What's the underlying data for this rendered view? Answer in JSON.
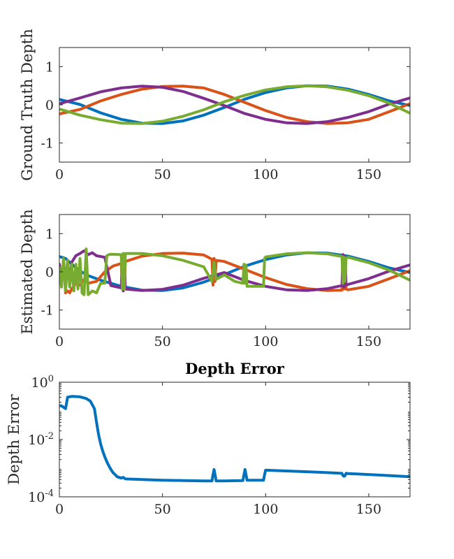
{
  "chart_data": [
    {
      "type": "line",
      "title": "",
      "xlabel": "",
      "ylabel": "Ground Truth Depth",
      "xlim": [
        0,
        170
      ],
      "ylim": [
        -1.5,
        1.5
      ],
      "xticks": [
        0,
        50,
        100,
        150
      ],
      "xtick_labels": [
        "0",
        "50",
        "100",
        "150"
      ],
      "yticks": [
        -1,
        0,
        1
      ],
      "ytick_labels": [
        "-1",
        "0",
        "1"
      ],
      "series": [
        {
          "name": "blue",
          "color": "#0072BD",
          "x": [
            0,
            10,
            20,
            30,
            40,
            50,
            60,
            70,
            80,
            90,
            100,
            110,
            120,
            130,
            140,
            150,
            160,
            170
          ],
          "values": [
            0.14,
            0.01,
            -0.21,
            -0.38,
            -0.48,
            -0.49,
            -0.42,
            -0.27,
            -0.07,
            0.15,
            0.32,
            0.44,
            0.5,
            0.49,
            0.41,
            0.27,
            0.1,
            -0.02
          ]
        },
        {
          "name": "orange",
          "color": "#D95319",
          "x": [
            0,
            10,
            20,
            30,
            40,
            50,
            60,
            70,
            80,
            90,
            100,
            110,
            120,
            130,
            140,
            150,
            160,
            170
          ],
          "values": [
            -0.24,
            -0.12,
            0.1,
            0.27,
            0.41,
            0.48,
            0.49,
            0.44,
            0.27,
            0.06,
            -0.15,
            -0.33,
            -0.44,
            -0.49,
            -0.47,
            -0.38,
            -0.18,
            0.03
          ]
        },
        {
          "name": "purple",
          "color": "#7E2F8E",
          "x": [
            0,
            10,
            20,
            30,
            40,
            50,
            60,
            70,
            80,
            90,
            100,
            110,
            120,
            130,
            140,
            150,
            160,
            170
          ],
          "values": [
            0.03,
            0.18,
            0.34,
            0.44,
            0.49,
            0.46,
            0.35,
            0.17,
            -0.02,
            -0.23,
            -0.38,
            -0.47,
            -0.49,
            -0.44,
            -0.33,
            -0.18,
            0.02,
            0.18
          ]
        },
        {
          "name": "green",
          "color": "#77AC30",
          "x": [
            0,
            10,
            20,
            30,
            40,
            50,
            60,
            70,
            80,
            90,
            100,
            110,
            120,
            130,
            140,
            150,
            160,
            170
          ],
          "values": [
            -0.11,
            -0.27,
            -0.39,
            -0.48,
            -0.49,
            -0.43,
            -0.3,
            -0.13,
            0.08,
            0.25,
            0.39,
            0.47,
            0.5,
            0.47,
            0.38,
            0.24,
            0.04,
            -0.22
          ]
        }
      ]
    },
    {
      "type": "line",
      "title": "",
      "xlabel": "",
      "ylabel": "Estimated Depth",
      "xlim": [
        0,
        170
      ],
      "ylim": [
        -1.5,
        1.5
      ],
      "xticks": [
        0,
        50,
        100,
        150
      ],
      "xtick_labels": [
        "0",
        "50",
        "100",
        "150"
      ],
      "yticks": [
        -1,
        0,
        1
      ],
      "ytick_labels": [
        "-1",
        "0",
        "1"
      ],
      "series": [
        {
          "name": "blue",
          "color": "#0072BD",
          "x": [
            0,
            3,
            6,
            10,
            14,
            20,
            25,
            30,
            40,
            50,
            60,
            70,
            80,
            90,
            100,
            110,
            120,
            130,
            140,
            150,
            160,
            170
          ],
          "values": [
            0.4,
            0.35,
            0.2,
            0.02,
            -0.1,
            -0.22,
            -0.3,
            -0.38,
            -0.48,
            -0.49,
            -0.42,
            -0.27,
            -0.07,
            0.15,
            0.32,
            0.44,
            0.5,
            0.49,
            0.41,
            0.27,
            0.1,
            -0.02
          ]
        },
        {
          "name": "orange",
          "color": "#D95319",
          "x": [
            0,
            1,
            2,
            3,
            4,
            5,
            6,
            8,
            10,
            12,
            14,
            18,
            22,
            26,
            30,
            30.5,
            31,
            31.5,
            32,
            40,
            50,
            60,
            70,
            74,
            74.5,
            75,
            75.5,
            76,
            80,
            90,
            100,
            110,
            120,
            130,
            137,
            137.5,
            138,
            138.5,
            139,
            140,
            150,
            160,
            170
          ],
          "values": [
            -0.1,
            -0.3,
            0.3,
            -0.55,
            -0.5,
            -0.55,
            -0.45,
            -0.3,
            -0.35,
            -0.2,
            -0.3,
            -0.25,
            0.0,
            0.15,
            0.22,
            -0.45,
            0.3,
            -0.45,
            0.27,
            0.41,
            0.48,
            0.49,
            0.44,
            0.33,
            -0.35,
            0.35,
            -0.25,
            0.3,
            0.27,
            0.06,
            -0.15,
            -0.33,
            -0.44,
            -0.49,
            -0.48,
            0.45,
            -0.45,
            0.4,
            -0.45,
            -0.47,
            -0.38,
            -0.18,
            0.03
          ]
        },
        {
          "name": "purple",
          "color": "#7E2F8E",
          "x": [
            0,
            1,
            2,
            3,
            4,
            5,
            6,
            8,
            10,
            12,
            14,
            16,
            18,
            22,
            25,
            30,
            30.5,
            31,
            31.5,
            32,
            40,
            50,
            60,
            70,
            80,
            90,
            100,
            110,
            120,
            130,
            137,
            137.5,
            138,
            138.5,
            139,
            140,
            150,
            160,
            170
          ],
          "values": [
            0.2,
            -0.3,
            0.25,
            -0.3,
            0.3,
            -0.3,
            0.25,
            0.42,
            0.48,
            0.55,
            0.45,
            0.5,
            0.42,
            0.38,
            -0.36,
            -0.42,
            0.45,
            -0.5,
            0.45,
            -0.45,
            -0.49,
            -0.46,
            -0.35,
            -0.17,
            -0.02,
            -0.23,
            -0.38,
            -0.47,
            -0.49,
            -0.44,
            -0.36,
            0.45,
            -0.4,
            0.4,
            -0.35,
            -0.33,
            -0.18,
            0.02,
            0.18
          ]
        },
        {
          "name": "green",
          "color": "#77AC30",
          "x": [
            0,
            1,
            2,
            3,
            4,
            5,
            6,
            7,
            8,
            9,
            10,
            11,
            12,
            13,
            14,
            16,
            18,
            20,
            22,
            23,
            24,
            25,
            30,
            30.5,
            31,
            31.5,
            32,
            40,
            50,
            60,
            70,
            74,
            75,
            76,
            80,
            85,
            89,
            89.5,
            90,
            90.5,
            91,
            99,
            99.5,
            100,
            110,
            120,
            130,
            137,
            137.5,
            138,
            138.5,
            139,
            140,
            150,
            160,
            170
          ],
          "values": [
            0.1,
            -0.4,
            0.35,
            -0.5,
            0.3,
            -0.4,
            0.2,
            -0.5,
            0.2,
            -0.45,
            0.35,
            -0.55,
            -0.6,
            0.6,
            -0.6,
            -0.5,
            -0.55,
            -0.3,
            -0.3,
            0.42,
            0.45,
            0.46,
            0.45,
            -0.45,
            0.48,
            -0.45,
            0.48,
            0.48,
            0.42,
            0.3,
            0.13,
            -0.25,
            0.25,
            -0.2,
            -0.08,
            -0.25,
            -0.3,
            0.2,
            -0.3,
            0.18,
            -0.38,
            -0.38,
            0.35,
            0.39,
            0.47,
            0.5,
            0.47,
            0.4,
            -0.3,
            0.38,
            -0.25,
            0.36,
            0.38,
            0.24,
            0.04,
            -0.22
          ]
        }
      ]
    },
    {
      "type": "line",
      "title": "Depth Error",
      "xlabel": "",
      "ylabel": "Depth Error",
      "yscale": "log",
      "xlim": [
        0,
        170
      ],
      "ylim": [
        0.0001,
        1
      ],
      "xticks": [
        0,
        50,
        100,
        150
      ],
      "xtick_labels": [
        "0",
        "50",
        "100",
        "150"
      ],
      "yticks": [
        0.0001,
        0.01,
        1
      ],
      "ytick_labels": [
        {
          "base": "10",
          "exp": "-4"
        },
        {
          "base": "10",
          "exp": "-2"
        },
        {
          "base": "10",
          "exp": "0"
        }
      ],
      "series": [
        {
          "name": "error",
          "color": "#0072BD",
          "x": [
            0,
            1,
            3,
            4,
            6,
            10,
            13,
            15,
            17,
            18,
            19,
            20,
            21,
            22,
            23,
            24,
            25,
            26,
            27,
            28,
            30,
            31,
            32,
            40,
            50,
            60,
            70,
            74,
            74.5,
            75,
            75.5,
            76,
            80,
            89,
            89.5,
            90,
            90.5,
            91,
            99,
            99.5,
            100,
            110,
            120,
            130,
            137,
            137.5,
            138,
            138.5,
            139,
            140,
            150,
            160,
            170
          ],
          "values": [
            0.15,
            0.15,
            0.12,
            0.3,
            0.32,
            0.31,
            0.27,
            0.22,
            0.12,
            0.04,
            0.015,
            0.007,
            0.004,
            0.0025,
            0.0017,
            0.0012,
            0.0009,
            0.0007,
            0.0006,
            0.0005,
            0.00045,
            0.00048,
            0.00042,
            0.0004,
            0.00038,
            0.00037,
            0.00036,
            0.00036,
            0.0006,
            0.0009,
            0.0006,
            0.00036,
            0.00036,
            0.00037,
            0.0006,
            0.0009,
            0.0006,
            0.00038,
            0.00038,
            0.0006,
            0.00085,
            0.0008,
            0.00075,
            0.0007,
            0.00066,
            0.00055,
            0.00052,
            0.00055,
            0.00066,
            0.00065,
            0.0006,
            0.00055,
            0.0005
          ]
        }
      ]
    }
  ]
}
